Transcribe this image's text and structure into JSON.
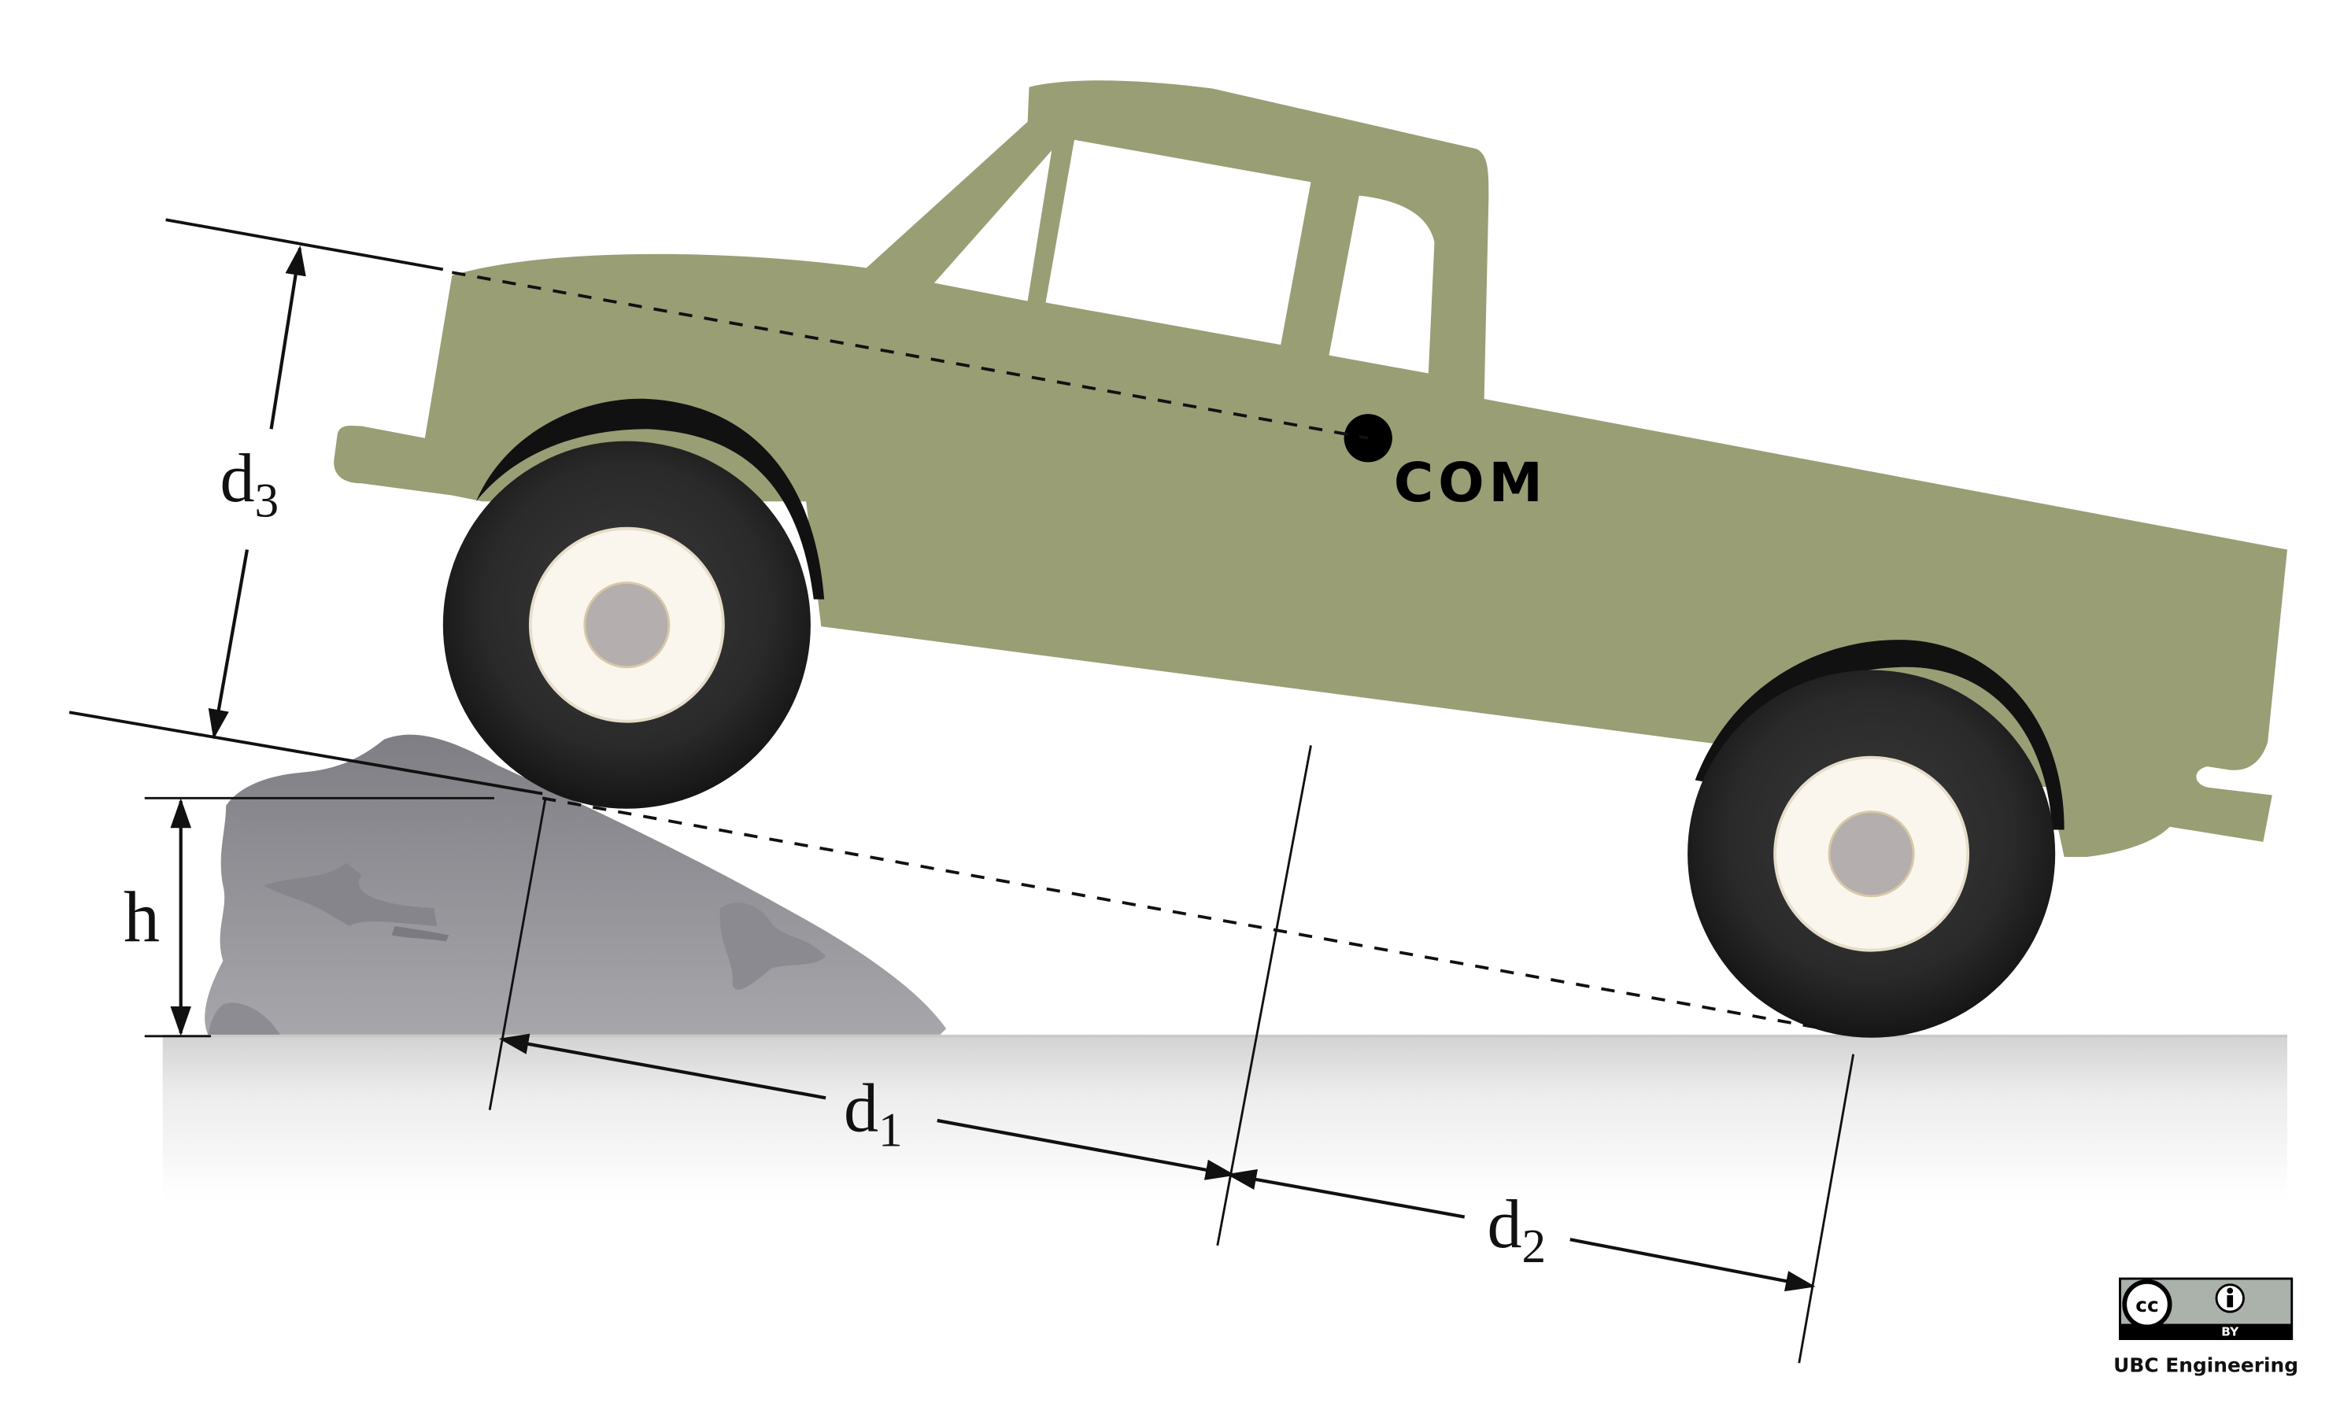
{
  "labels": {
    "d3_main": "d",
    "d3_sub": "3",
    "h": "h",
    "d1_main": "d",
    "d1_sub": "1",
    "d2_main": "d",
    "d2_sub": "2",
    "com": "COM"
  },
  "badge": {
    "license_left": "cc",
    "license_by": "BY",
    "credit": "UBC Engineering"
  },
  "colors": {
    "truck_body": "#999e75",
    "tire": "#222222",
    "rim": "#faf6ee",
    "hub": "#b4aeae",
    "rock": "#9a9aa0",
    "ground": "#d8d8d8",
    "line": "#111111"
  }
}
